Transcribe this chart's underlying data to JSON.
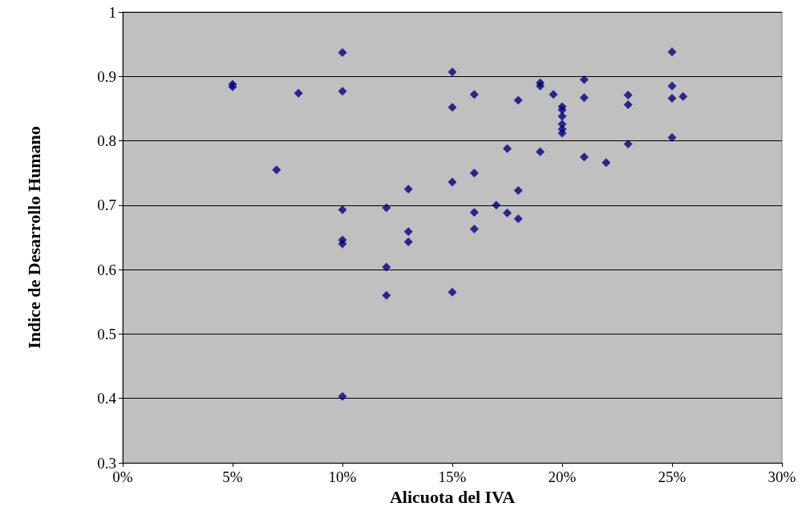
{
  "chart_data": {
    "type": "scatter",
    "xlabel": "Alicuota del IVA",
    "ylabel": "Indice de Desarrollo Humano",
    "x": [
      5,
      5,
      7,
      8,
      10,
      10,
      10,
      10,
      10,
      10,
      12,
      12,
      12,
      13,
      13,
      13,
      15,
      15,
      15,
      15,
      16,
      16,
      16,
      16,
      17,
      17.5,
      17.5,
      18,
      18,
      18,
      19,
      19,
      19,
      19.6,
      20,
      20,
      20,
      20,
      20,
      20,
      21,
      21,
      21,
      22,
      23,
      23,
      23,
      25,
      25,
      25,
      25,
      25.5
    ],
    "values": [
      0.888,
      0.884,
      0.755,
      0.874,
      0.937,
      0.877,
      0.693,
      0.646,
      0.64,
      0.403,
      0.696,
      0.604,
      0.56,
      0.725,
      0.659,
      0.643,
      0.907,
      0.852,
      0.736,
      0.565,
      0.872,
      0.75,
      0.689,
      0.663,
      0.7,
      0.788,
      0.688,
      0.863,
      0.723,
      0.679,
      0.89,
      0.885,
      0.783,
      0.872,
      0.853,
      0.848,
      0.838,
      0.826,
      0.818,
      0.812,
      0.895,
      0.867,
      0.775,
      0.766,
      0.871,
      0.856,
      0.795,
      0.938,
      0.885,
      0.866,
      0.805,
      0.869
    ],
    "color": "#000080",
    "marker": "diamond",
    "grid": "y",
    "xlim": [
      0,
      30
    ],
    "xticks": [
      {
        "value": 0,
        "label": "0%"
      },
      {
        "value": 5,
        "label": "5%"
      },
      {
        "value": 10,
        "label": "10%"
      },
      {
        "value": 15,
        "label": "15%"
      },
      {
        "value": 20,
        "label": "20%"
      },
      {
        "value": 25,
        "label": "25%"
      },
      {
        "value": 30,
        "label": "30%"
      }
    ],
    "ylim": [
      0.3,
      1
    ],
    "yticks": [
      0.3,
      0.4,
      0.5,
      0.6,
      0.7,
      0.8,
      0.9,
      1
    ]
  }
}
